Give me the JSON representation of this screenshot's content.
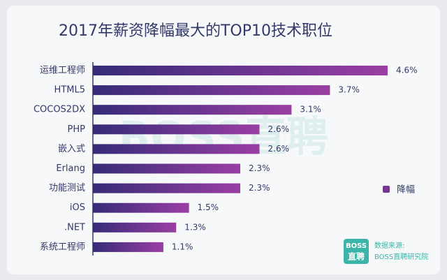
{
  "chart_data": {
    "type": "bar",
    "orientation": "horizontal",
    "title": "2017年薪资降幅最大的TOP10技术职位",
    "categories": [
      "运维工程师",
      "HTML5",
      "COCOS2DX",
      "PHP",
      "嵌入式",
      "Erlang",
      "功能测试",
      "iOS",
      ".NET",
      "系统工程师"
    ],
    "series": [
      {
        "name": "降幅",
        "color": "#7b3597",
        "values": [
          4.6,
          3.7,
          3.1,
          2.6,
          2.6,
          2.3,
          2.3,
          1.5,
          1.3,
          1.1
        ],
        "value_labels": [
          "4.6%",
          "3.7%",
          "3.1%",
          "2.6%",
          "2.6%",
          "2.3%",
          "2.3%",
          "1.5%",
          "1.3%",
          "1.1%"
        ]
      }
    ],
    "legend": "right"
  },
  "watermark": "BOSS直聘",
  "source": {
    "logo_top": "BOSS",
    "logo_bottom": "直聘",
    "label": "数据来源:",
    "text": "BOSS直聘研究院"
  }
}
